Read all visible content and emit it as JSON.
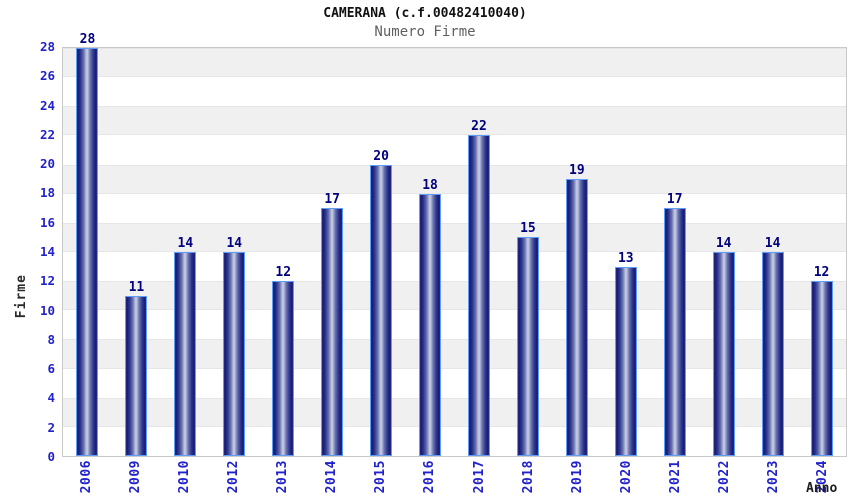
{
  "header": {
    "title": "CAMERANA (c.f.00482410040)",
    "subtitle": "Numero Firme"
  },
  "axes": {
    "y_title": "Firme",
    "x_title": "Anno"
  },
  "chart_data": {
    "type": "bar",
    "title": "CAMERANA (c.f.00482410040)",
    "subtitle": "Numero Firme",
    "xlabel": "Anno",
    "ylabel": "Firme",
    "categories": [
      "2006",
      "2009",
      "2010",
      "2012",
      "2013",
      "2014",
      "2015",
      "2016",
      "2017",
      "2018",
      "2019",
      "2020",
      "2021",
      "2022",
      "2023",
      "2024"
    ],
    "values": [
      28,
      11,
      14,
      14,
      12,
      17,
      20,
      18,
      22,
      15,
      19,
      13,
      17,
      14,
      14,
      12
    ],
    "ylim": [
      0,
      28
    ],
    "yticks": [
      0,
      2,
      4,
      6,
      8,
      10,
      12,
      14,
      16,
      18,
      20,
      22,
      24,
      26,
      28
    ],
    "grid": "horizontal alternating bands of 2 units, gray on top band",
    "legend": "none",
    "bar_labels_shown": true
  },
  "colors": {
    "tick_blue": "#2222cc",
    "value_label_navy": "#00007e",
    "bar_border_blue": "#5e9cf5",
    "bar_dark": "#171c74",
    "bar_light": "#c9cfe6",
    "band_gray": "#f0f0f0",
    "plot_border": "#c9c9c9",
    "subtitle_gray": "#606060",
    "title_black": "#111111"
  }
}
